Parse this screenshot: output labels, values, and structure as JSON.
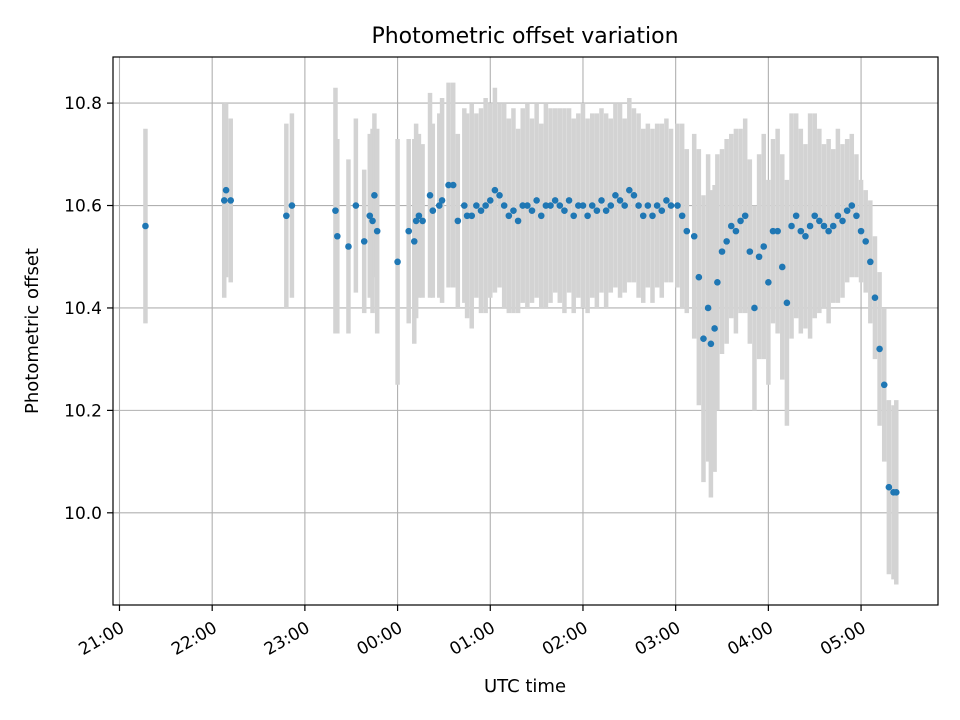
{
  "chart_data": {
    "type": "scatter",
    "title": "Photometric offset variation",
    "xlabel": "UTC time",
    "ylabel": "Photometric offset",
    "x_unit": "hours relative to 00:00 UTC",
    "xlim": [
      -3.07,
      5.83
    ],
    "ylim": [
      9.82,
      10.89
    ],
    "grid": true,
    "x_ticks": [
      {
        "value": -3,
        "label": "21:00"
      },
      {
        "value": -2,
        "label": "22:00"
      },
      {
        "value": -1,
        "label": "23:00"
      },
      {
        "value": 0,
        "label": "00:00"
      },
      {
        "value": 1,
        "label": "01:00"
      },
      {
        "value": 2,
        "label": "02:00"
      },
      {
        "value": 3,
        "label": "03:00"
      },
      {
        "value": 4,
        "label": "04:00"
      },
      {
        "value": 5,
        "label": "05:00"
      }
    ],
    "y_ticks": [
      {
        "value": 10.0,
        "label": "10.0"
      },
      {
        "value": 10.2,
        "label": "10.2"
      },
      {
        "value": 10.4,
        "label": "10.4"
      },
      {
        "value": 10.6,
        "label": "10.6"
      },
      {
        "value": 10.8,
        "label": "10.8"
      }
    ],
    "colors": {
      "point": "#1f77b4",
      "errorbar": "#d3d3d3",
      "grid": "#b0b0b0"
    },
    "series": [
      {
        "x": [
          -2.72,
          -1.87,
          -1.85,
          -1.8,
          -1.2,
          -1.14,
          -0.67,
          -0.65,
          -0.53,
          -0.45,
          -0.36,
          -0.3,
          -0.27,
          -0.25,
          -0.22,
          0.0,
          0.12,
          0.18,
          0.2,
          0.23,
          0.27,
          0.35,
          0.38,
          0.45,
          0.48,
          0.55,
          0.6,
          0.65,
          0.72
        ],
        "y": [
          10.56,
          10.61,
          10.63,
          10.61,
          10.58,
          10.6,
          10.59,
          10.54,
          10.52,
          10.6,
          10.53,
          10.58,
          10.57,
          10.62,
          10.55,
          10.49,
          10.55,
          10.53,
          10.57,
          10.58,
          10.57,
          10.62,
          10.59,
          10.6,
          10.61,
          10.64,
          10.64,
          10.57,
          10.6
        ],
        "err": [
          0.19,
          0.19,
          0.17,
          0.16,
          0.18,
          0.18,
          0.24,
          0.19,
          0.17,
          0.17,
          0.14,
          0.16,
          0.18,
          0.16,
          0.2,
          0.24,
          0.18,
          0.2,
          0.19,
          0.16,
          0.15,
          0.2,
          0.17,
          0.18,
          0.2,
          0.2,
          0.2,
          0.17,
          0.19
        ]
      },
      {
        "x": [
          0.75,
          0.8,
          0.85,
          0.9,
          0.95,
          1.0,
          1.05,
          1.1,
          1.15,
          1.2,
          1.25,
          1.3,
          1.35,
          1.4,
          1.45,
          1.5,
          1.55,
          1.6,
          1.65,
          1.7,
          1.75,
          1.8,
          1.85,
          1.9,
          1.95,
          2.0,
          2.05,
          2.1,
          2.15,
          2.2,
          2.25,
          2.3,
          2.35,
          2.4,
          2.45,
          2.5,
          2.55,
          2.6,
          2.65,
          2.7,
          2.75,
          2.8,
          2.85,
          2.9,
          2.95
        ],
        "y": [
          10.58,
          10.58,
          10.6,
          10.59,
          10.6,
          10.61,
          10.63,
          10.62,
          10.6,
          10.58,
          10.59,
          10.57,
          10.6,
          10.6,
          10.59,
          10.61,
          10.58,
          10.6,
          10.6,
          10.61,
          10.6,
          10.59,
          10.61,
          10.58,
          10.6,
          10.6,
          10.58,
          10.6,
          10.59,
          10.61,
          10.59,
          10.6,
          10.62,
          10.61,
          10.6,
          10.63,
          10.62,
          10.6,
          10.58,
          10.6,
          10.58,
          10.6,
          10.59,
          10.61,
          10.6
        ],
        "err": [
          0.2,
          0.22,
          0.18,
          0.2,
          0.21,
          0.19,
          0.2,
          0.18,
          0.2,
          0.19,
          0.2,
          0.18,
          0.19,
          0.2,
          0.18,
          0.19,
          0.18,
          0.2,
          0.19,
          0.18,
          0.19,
          0.2,
          0.18,
          0.19,
          0.18,
          0.2,
          0.19,
          0.18,
          0.19,
          0.18,
          0.19,
          0.17,
          0.18,
          0.19,
          0.17,
          0.18,
          0.17,
          0.18,
          0.17,
          0.16,
          0.17,
          0.16,
          0.17,
          0.16,
          0.15
        ]
      },
      {
        "x": [
          3.02,
          3.07,
          3.12,
          3.2,
          3.25,
          3.3,
          3.35,
          3.38,
          3.42,
          3.45,
          3.5,
          3.55,
          3.6,
          3.65,
          3.7,
          3.75,
          3.8,
          3.85,
          3.9,
          3.95,
          4.0,
          4.05,
          4.1,
          4.15,
          4.2,
          4.25,
          4.3,
          4.35,
          4.4,
          4.45,
          4.5,
          4.55,
          4.6,
          4.65,
          4.7,
          4.75,
          4.8,
          4.85,
          4.9,
          4.95,
          5.0,
          5.05,
          5.1,
          5.15,
          5.2,
          5.25,
          5.3,
          5.35,
          5.38
        ],
        "y": [
          10.6,
          10.58,
          10.55,
          10.54,
          10.46,
          10.34,
          10.4,
          10.33,
          10.36,
          10.45,
          10.51,
          10.53,
          10.56,
          10.55,
          10.57,
          10.58,
          10.51,
          10.4,
          10.5,
          10.52,
          10.45,
          10.55,
          10.55,
          10.48,
          10.41,
          10.56,
          10.58,
          10.55,
          10.54,
          10.56,
          10.58,
          10.57,
          10.56,
          10.55,
          10.56,
          10.58,
          10.57,
          10.59,
          10.6,
          10.58,
          10.55,
          10.53,
          10.49,
          10.42,
          10.32,
          10.25,
          10.05,
          10.04,
          10.04
        ],
        "err": [
          0.16,
          0.18,
          0.16,
          0.2,
          0.25,
          0.28,
          0.3,
          0.3,
          0.28,
          0.25,
          0.2,
          0.2,
          0.18,
          0.2,
          0.18,
          0.19,
          0.18,
          0.2,
          0.2,
          0.22,
          0.2,
          0.18,
          0.2,
          0.22,
          0.24,
          0.22,
          0.2,
          0.2,
          0.18,
          0.22,
          0.2,
          0.18,
          0.16,
          0.18,
          0.15,
          0.17,
          0.15,
          0.14,
          0.14,
          0.12,
          0.1,
          0.1,
          0.12,
          0.12,
          0.15,
          0.15,
          0.17,
          0.17,
          0.18
        ]
      }
    ]
  }
}
